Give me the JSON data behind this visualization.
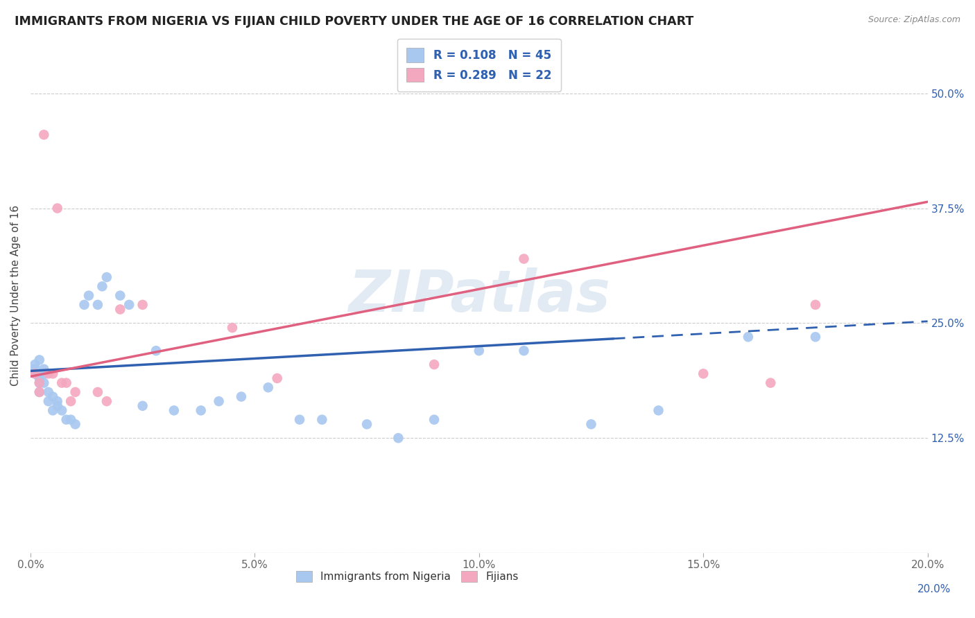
{
  "title": "IMMIGRANTS FROM NIGERIA VS FIJIAN CHILD POVERTY UNDER THE AGE OF 16 CORRELATION CHART",
  "source": "Source: ZipAtlas.com",
  "ylabel": "Child Poverty Under the Age of 16",
  "legend_label_bottom_1": "Immigrants from Nigeria",
  "legend_label_bottom_2": "Fijians",
  "r1": "0.108",
  "n1": "45",
  "r2": "0.289",
  "n2": "22",
  "x_min": 0.0,
  "x_max": 0.2,
  "y_min": 0.0,
  "y_max": 0.56,
  "watermark": "ZIPatlas",
  "blue_color": "#a8c8f0",
  "pink_color": "#f4a8c0",
  "blue_line_color": "#3060b0",
  "pink_line_color": "#e06080",
  "nigeria_points_x": [
    0.001,
    0.001,
    0.001,
    0.002,
    0.002,
    0.002,
    0.002,
    0.003,
    0.003,
    0.003,
    0.004,
    0.004,
    0.005,
    0.005,
    0.006,
    0.006,
    0.007,
    0.008,
    0.009,
    0.01,
    0.012,
    0.013,
    0.015,
    0.016,
    0.017,
    0.02,
    0.022,
    0.025,
    0.028,
    0.032,
    0.038,
    0.042,
    0.047,
    0.053,
    0.06,
    0.065,
    0.075,
    0.082,
    0.09,
    0.1,
    0.11,
    0.125,
    0.14,
    0.16,
    0.175
  ],
  "nigeria_points_y": [
    0.2,
    0.205,
    0.195,
    0.21,
    0.19,
    0.185,
    0.175,
    0.2,
    0.195,
    0.185,
    0.175,
    0.165,
    0.17,
    0.155,
    0.165,
    0.16,
    0.155,
    0.145,
    0.145,
    0.14,
    0.27,
    0.28,
    0.27,
    0.29,
    0.3,
    0.28,
    0.27,
    0.16,
    0.22,
    0.155,
    0.155,
    0.165,
    0.17,
    0.18,
    0.145,
    0.145,
    0.14,
    0.125,
    0.145,
    0.22,
    0.22,
    0.14,
    0.155,
    0.235,
    0.235
  ],
  "fijian_points_x": [
    0.001,
    0.002,
    0.002,
    0.003,
    0.004,
    0.005,
    0.006,
    0.007,
    0.008,
    0.009,
    0.01,
    0.015,
    0.017,
    0.02,
    0.025,
    0.045,
    0.055,
    0.09,
    0.11,
    0.15,
    0.165,
    0.175
  ],
  "fijian_points_y": [
    0.195,
    0.185,
    0.175,
    0.455,
    0.195,
    0.195,
    0.375,
    0.185,
    0.185,
    0.165,
    0.175,
    0.175,
    0.165,
    0.265,
    0.27,
    0.245,
    0.19,
    0.205,
    0.32,
    0.195,
    0.185,
    0.27
  ],
  "trendline_blue_y_start": 0.198,
  "trendline_blue_slope": 0.27,
  "trendline_blue_solid_end": 0.13,
  "trendline_pink_y_start": 0.192,
  "trendline_pink_slope": 0.95
}
